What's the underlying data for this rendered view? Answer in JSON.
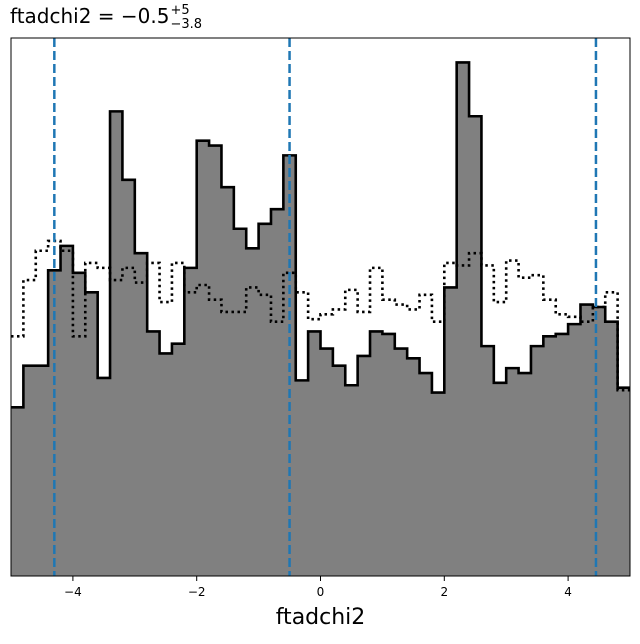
{
  "chart_data": {
    "type": "histogram",
    "title": {
      "prefix": "ftadchi2 = ",
      "value": "−0.5",
      "upper": "+5",
      "lower": "−3.8"
    },
    "xlabel": "ftadchi2",
    "ylabel": "",
    "xlim": [
      -5,
      5
    ],
    "ylim": [
      0,
      22
    ],
    "grid": false,
    "xticks": [
      {
        "value": -4,
        "label": "−4"
      },
      {
        "value": -2,
        "label": "−2"
      },
      {
        "value": 0,
        "label": "0"
      },
      {
        "value": 2,
        "label": "2"
      },
      {
        "value": 4,
        "label": "4"
      }
    ],
    "bin_edges": [
      -5,
      -4.8,
      -4.6,
      -4.4,
      -4.2,
      -4,
      -3.8,
      -3.6,
      -3.4,
      -3.2,
      -3,
      -2.8,
      -2.6,
      -2.4,
      -2.2,
      -2,
      -1.8,
      -1.6,
      -1.4,
      -1.2,
      -1,
      -0.8,
      -0.6,
      -0.4,
      -0.2,
      0,
      0.2,
      0.4,
      0.6,
      0.8,
      1,
      1.2,
      1.4,
      1.6,
      1.8,
      2,
      2.2,
      2.4,
      2.6,
      2.8,
      3,
      3.2,
      3.4,
      3.6,
      3.8,
      4,
      4.2,
      4.4,
      4.6,
      4.8,
      5
    ],
    "series": [
      {
        "style": "filled-outline",
        "fill_color": "#808080",
        "edge_color": "#000000",
        "values": [
          6.9,
          8.6,
          8.6,
          12.5,
          13.5,
          12.4,
          11.6,
          8.1,
          19.0,
          16.2,
          13.2,
          10.0,
          9.1,
          9.5,
          12.6,
          17.8,
          17.6,
          15.9,
          14.2,
          13.4,
          14.4,
          15.0,
          17.2,
          8.0,
          10.0,
          9.3,
          8.6,
          7.8,
          9.0,
          10.0,
          9.9,
          9.3,
          8.9,
          8.3,
          7.5,
          11.8,
          21.0,
          18.8,
          9.4,
          7.9,
          8.5,
          8.3,
          9.4,
          9.8,
          9.9,
          10.3,
          11.1,
          11.0,
          10.4,
          7.7
        ]
      },
      {
        "style": "dotted-step",
        "edge_color": "#000000",
        "values": [
          9.8,
          12.1,
          13.3,
          13.7,
          13.3,
          9.8,
          12.8,
          12.6,
          12.1,
          12.6,
          12.0,
          12.8,
          11.2,
          12.8,
          11.6,
          11.9,
          11.3,
          10.8,
          10.8,
          11.8,
          11.5,
          10.4,
          12.4,
          11.6,
          10.5,
          10.7,
          10.9,
          11.7,
          10.8,
          12.6,
          11.3,
          11.1,
          10.9,
          11.5,
          10.4,
          12.8,
          12.7,
          13.2,
          12.7,
          11.2,
          12.9,
          12.2,
          12.3,
          11.3,
          10.7,
          10.6,
          10.4,
          11.0,
          11.6,
          7.6
        ]
      }
    ],
    "vlines": {
      "color": "#1f77b4",
      "style": "dashed",
      "x": [
        -4.3,
        -0.5,
        4.45
      ]
    }
  }
}
